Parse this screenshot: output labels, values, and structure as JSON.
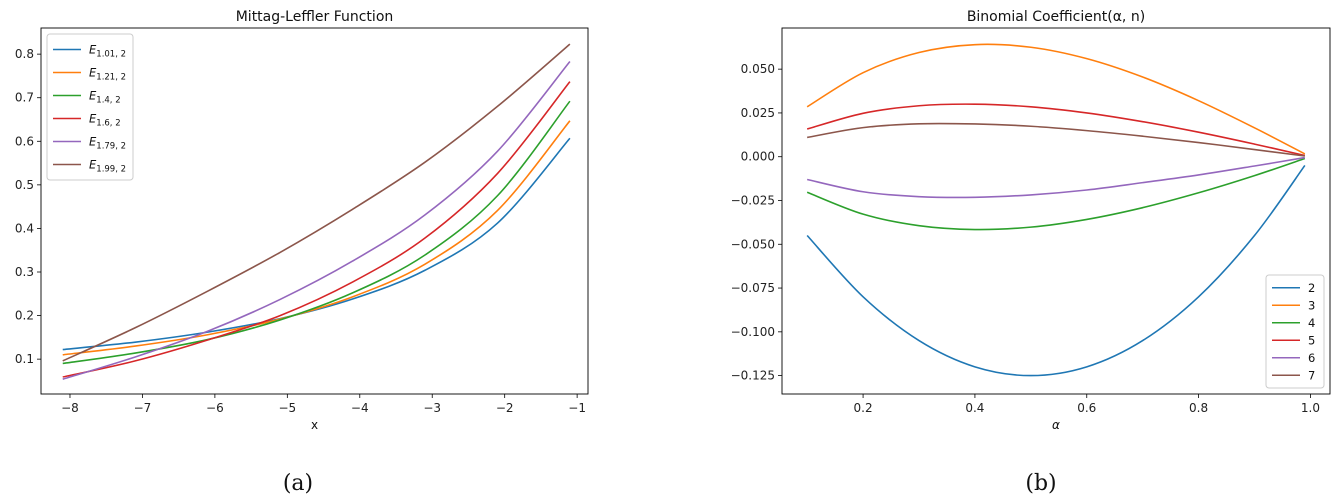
{
  "chart_data": [
    {
      "type": "line",
      "title": "Mittag-Leffler Function",
      "xlabel": "x",
      "ylabel": "",
      "caption": "(a)",
      "xlim": [
        -8.4,
        -0.85
      ],
      "ylim": [
        0.02,
        0.86
      ],
      "xticks": [
        -8,
        -7,
        -6,
        -5,
        -4,
        -3,
        -2,
        -1
      ],
      "yticks": [
        0.1,
        0.2,
        0.3,
        0.4,
        0.5,
        0.6,
        0.7,
        0.8
      ],
      "legend_position": "upper-left",
      "x": [
        -8.1,
        -7.1,
        -6.1,
        -5.1,
        -4.1,
        -3.1,
        -2.1,
        -1.1
      ],
      "series": [
        {
          "name": "E_{1.01, 2}",
          "label_main": "E",
          "label_sub": "1.01, 2",
          "color": "#1f77b4",
          "values": [
            0.122,
            0.139,
            0.162,
            0.193,
            0.238,
            0.304,
            0.412,
            0.607
          ]
        },
        {
          "name": "E_{1.21, 2}",
          "label_main": "E",
          "label_sub": "1.21, 2",
          "color": "#ff7f0e",
          "values": [
            0.11,
            0.13,
            0.156,
            0.192,
            0.243,
            0.318,
            0.441,
            0.647
          ]
        },
        {
          "name": "E_{1.4, 2}",
          "label_main": "E",
          "label_sub": "1.4, 2",
          "color": "#2ca02c",
          "values": [
            0.09,
            0.114,
            0.145,
            0.19,
            0.252,
            0.339,
            0.475,
            0.692
          ]
        },
        {
          "name": "E_{1.6, 2}",
          "label_main": "E",
          "label_sub": "1.6, 2",
          "color": "#d62728",
          "values": [
            0.059,
            0.096,
            0.144,
            0.2,
            0.277,
            0.378,
            0.526,
            0.737
          ]
        },
        {
          "name": "E_{1.79, 2}",
          "label_main": "E",
          "label_sub": "1.79, 2",
          "color": "#9467bd",
          "values": [
            0.054,
            0.105,
            0.164,
            0.237,
            0.325,
            0.431,
            0.577,
            0.783
          ]
        },
        {
          "name": "E_{1.99, 2}",
          "label_main": "E",
          "label_sub": "1.99, 2",
          "color": "#8c564b",
          "values": [
            0.096,
            0.172,
            0.256,
            0.345,
            0.444,
            0.552,
            0.68,
            0.823
          ]
        }
      ]
    },
    {
      "type": "line",
      "title": "Binomial Coefficient(α, n)",
      "xlabel": "α",
      "ylabel": "",
      "caption": "(b)",
      "xlim": [
        0.055,
        1.035
      ],
      "ylim": [
        -0.1355,
        0.0735
      ],
      "xticks": [
        0.2,
        0.4,
        0.6,
        0.8,
        1.0
      ],
      "yticks": [
        -0.125,
        -0.1,
        -0.075,
        -0.05,
        -0.025,
        0.0,
        0.025,
        0.05
      ],
      "xtick_labels": [
        "0.2",
        "0.4",
        "0.6",
        "0.8",
        "1.0"
      ],
      "ytick_labels": [
        "−0.125",
        "−0.100",
        "−0.075",
        "−0.050",
        "−0.025",
        "0.000",
        "0.025",
        "0.050"
      ],
      "legend_position": "lower-right",
      "x": [
        0.1,
        0.2,
        0.3,
        0.4,
        0.5,
        0.6,
        0.7,
        0.8,
        0.9,
        0.99
      ],
      "series": [
        {
          "name": "2",
          "color": "#1f77b4",
          "values": [
            -0.045,
            -0.08,
            -0.105,
            -0.12,
            -0.125,
            -0.12,
            -0.105,
            -0.08,
            -0.045,
            -0.005
          ]
        },
        {
          "name": "3",
          "color": "#ff7f0e",
          "values": [
            0.0285,
            0.048,
            0.0595,
            0.064,
            0.0625,
            0.056,
            0.0455,
            0.032,
            0.0165,
            0.0016
          ]
        },
        {
          "name": "4",
          "color": "#2ca02c",
          "values": [
            -0.0203,
            -0.0328,
            -0.0394,
            -0.0416,
            -0.0402,
            -0.0358,
            -0.0291,
            -0.0206,
            -0.0108,
            -0.001
          ]
        },
        {
          "name": "5",
          "color": "#d62728",
          "values": [
            0.0158,
            0.0248,
            0.0291,
            0.03,
            0.0285,
            0.025,
            0.02,
            0.014,
            0.0072,
            0.0007
          ]
        },
        {
          "name": "6",
          "color": "#9467bd",
          "values": [
            -0.013,
            -0.02,
            -0.0228,
            -0.0232,
            -0.0218,
            -0.019,
            -0.0148,
            -0.0104,
            -0.0053,
            -0.0005
          ]
        },
        {
          "name": "7",
          "color": "#8c564b",
          "values": [
            0.011,
            0.0166,
            0.0188,
            0.0187,
            0.0174,
            0.0149,
            0.0117,
            0.0081,
            0.0041,
            0.0004
          ]
        }
      ]
    }
  ]
}
